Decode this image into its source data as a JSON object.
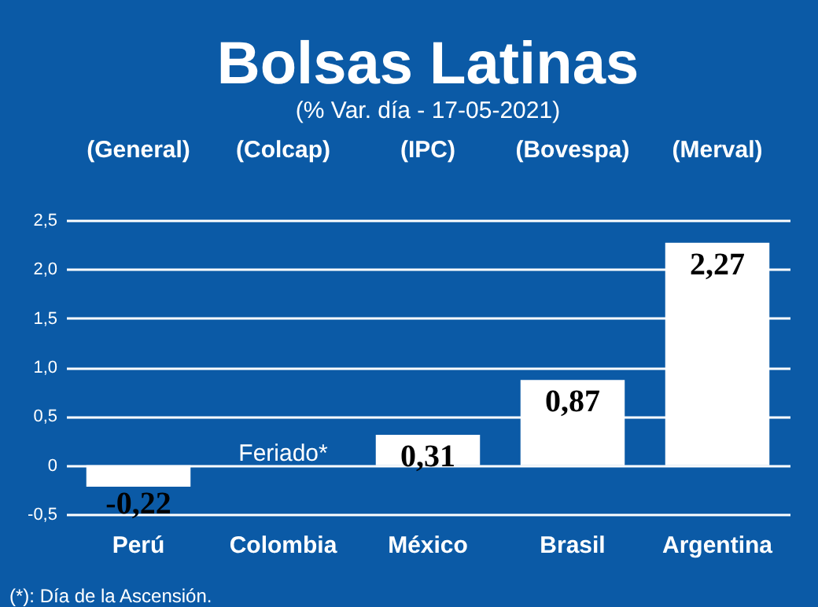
{
  "chart_data": {
    "type": "bar",
    "title": "Bolsas Latinas",
    "subtitle": "(% Var. día - 17-05-2021)",
    "categories": [
      "Perú",
      "Colombia",
      "México",
      "Brasil",
      "Argentina"
    ],
    "values": [
      -0.22,
      null,
      0.31,
      0.87,
      2.27
    ],
    "value_labels": [
      "-0,22",
      null,
      "0,31",
      "0,87",
      "2,27"
    ],
    "color": "#ffffff",
    "ylim": [
      -0.5,
      2.5
    ],
    "yticks": [
      {
        "value": -0.5,
        "label": "-0,5"
      },
      0,
      {
        "value": 0.5,
        "label": "0,5"
      },
      {
        "value": 1.0,
        "label": "1,0"
      },
      {
        "value": 1.5,
        "label": "1,5"
      },
      {
        "value": 2.0,
        "label": "2,0"
      },
      {
        "value": 2.5,
        "label": "2,5"
      }
    ],
    "grid": "y",
    "annotations": [
      "(General)",
      "(Colcap)",
      "(IPC)",
      "(Bovespa)",
      "(Merval)",
      "Feriado*",
      "(*): Día de la Ascensión."
    ]
  }
}
